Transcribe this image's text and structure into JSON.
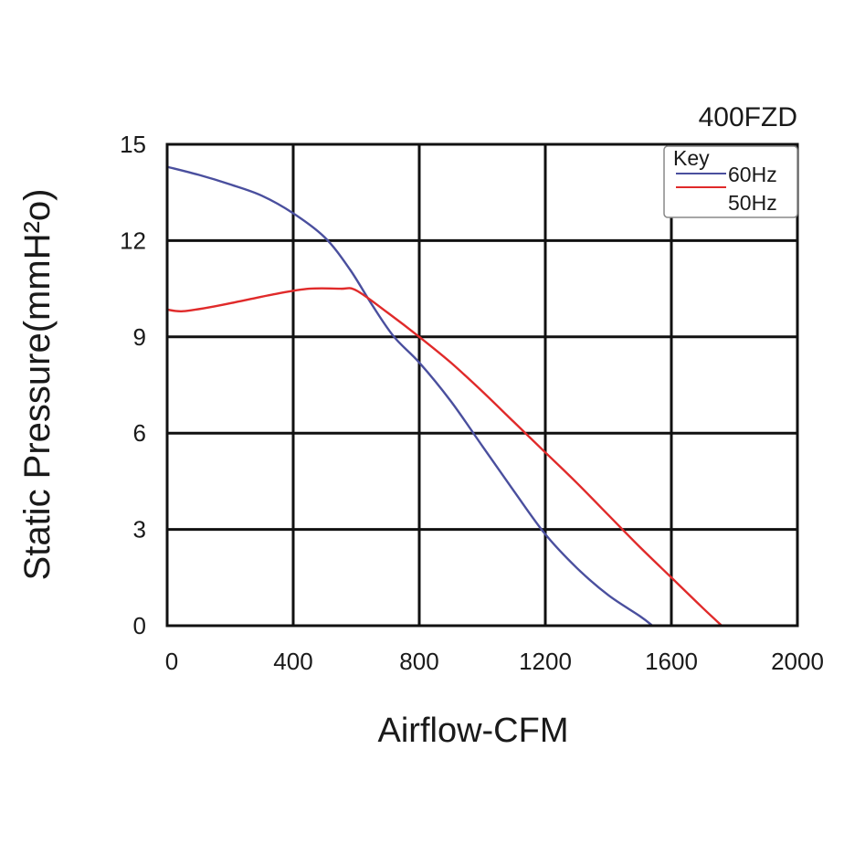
{
  "chart_data": {
    "type": "line",
    "title": "400FZD",
    "xlabel": "Airflow-CFM",
    "ylabel": "Static Pressure(mmH²o)",
    "xlim": [
      0,
      2000
    ],
    "ylim": [
      0,
      15
    ],
    "xticks": [
      0,
      400,
      800,
      1200,
      1600,
      2000
    ],
    "yticks": [
      0,
      3,
      6,
      9,
      12,
      15
    ],
    "grid": true,
    "legend": {
      "title": "Key",
      "position": "top-right"
    },
    "series": [
      {
        "name": "60Hz",
        "color": "#4a4f9e",
        "points": [
          [
            0,
            14.3
          ],
          [
            100,
            14.05
          ],
          [
            200,
            13.75
          ],
          [
            300,
            13.4
          ],
          [
            400,
            12.85
          ],
          [
            500,
            12.1
          ],
          [
            580,
            11.1
          ],
          [
            650,
            10.0
          ],
          [
            720,
            9.0
          ],
          [
            800,
            8.2
          ],
          [
            900,
            7.0
          ],
          [
            1000,
            5.6
          ],
          [
            1100,
            4.2
          ],
          [
            1200,
            2.85
          ],
          [
            1300,
            1.8
          ],
          [
            1400,
            0.95
          ],
          [
            1500,
            0.3
          ],
          [
            1540,
            0.0
          ]
        ]
      },
      {
        "name": "50Hz",
        "color": "#e02a2a",
        "points": [
          [
            0,
            9.85
          ],
          [
            50,
            9.8
          ],
          [
            150,
            9.95
          ],
          [
            250,
            10.15
          ],
          [
            350,
            10.35
          ],
          [
            450,
            10.5
          ],
          [
            550,
            10.5
          ],
          [
            600,
            10.45
          ],
          [
            700,
            9.75
          ],
          [
            800,
            9.0
          ],
          [
            900,
            8.2
          ],
          [
            1000,
            7.3
          ],
          [
            1100,
            6.35
          ],
          [
            1200,
            5.4
          ],
          [
            1300,
            4.45
          ],
          [
            1400,
            3.45
          ],
          [
            1500,
            2.45
          ],
          [
            1600,
            1.5
          ],
          [
            1700,
            0.55
          ],
          [
            1760,
            0.0
          ]
        ]
      }
    ]
  }
}
